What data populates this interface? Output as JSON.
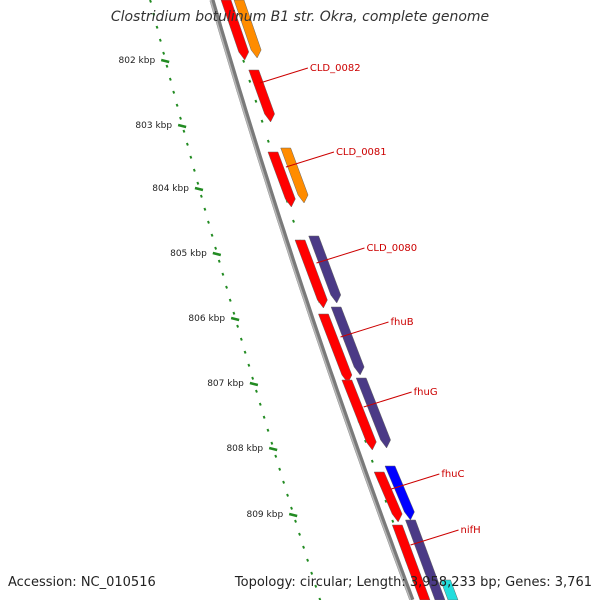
{
  "title": "Clostridium botulinum B1 str. Okra, complete genome",
  "footer": {
    "accession": "Accession: NC_010516",
    "summary": "Topology: circular; Length: 3,958,233 bp; Genes: 3,761"
  },
  "colors": {
    "backbone": "#7a7a7a",
    "cds": "#ff0000",
    "cds_other": "#ff8c00",
    "gene_purple": "#4b3a86",
    "gene_blue": "#0000ff",
    "gene_cyan": "#22dddd",
    "tick": "#228b22",
    "label": "#cc0000"
  },
  "ticks": [
    "802 kbp",
    "803 kbp",
    "804 kbp",
    "805 kbp",
    "806 kbp",
    "807 kbp",
    "808 kbp",
    "809 kbp"
  ],
  "gene_labels": [
    "CLD_0082",
    "CLD_0081",
    "CLD_0080",
    "fhuB",
    "fhuG",
    "fhuC",
    "nifH"
  ]
}
